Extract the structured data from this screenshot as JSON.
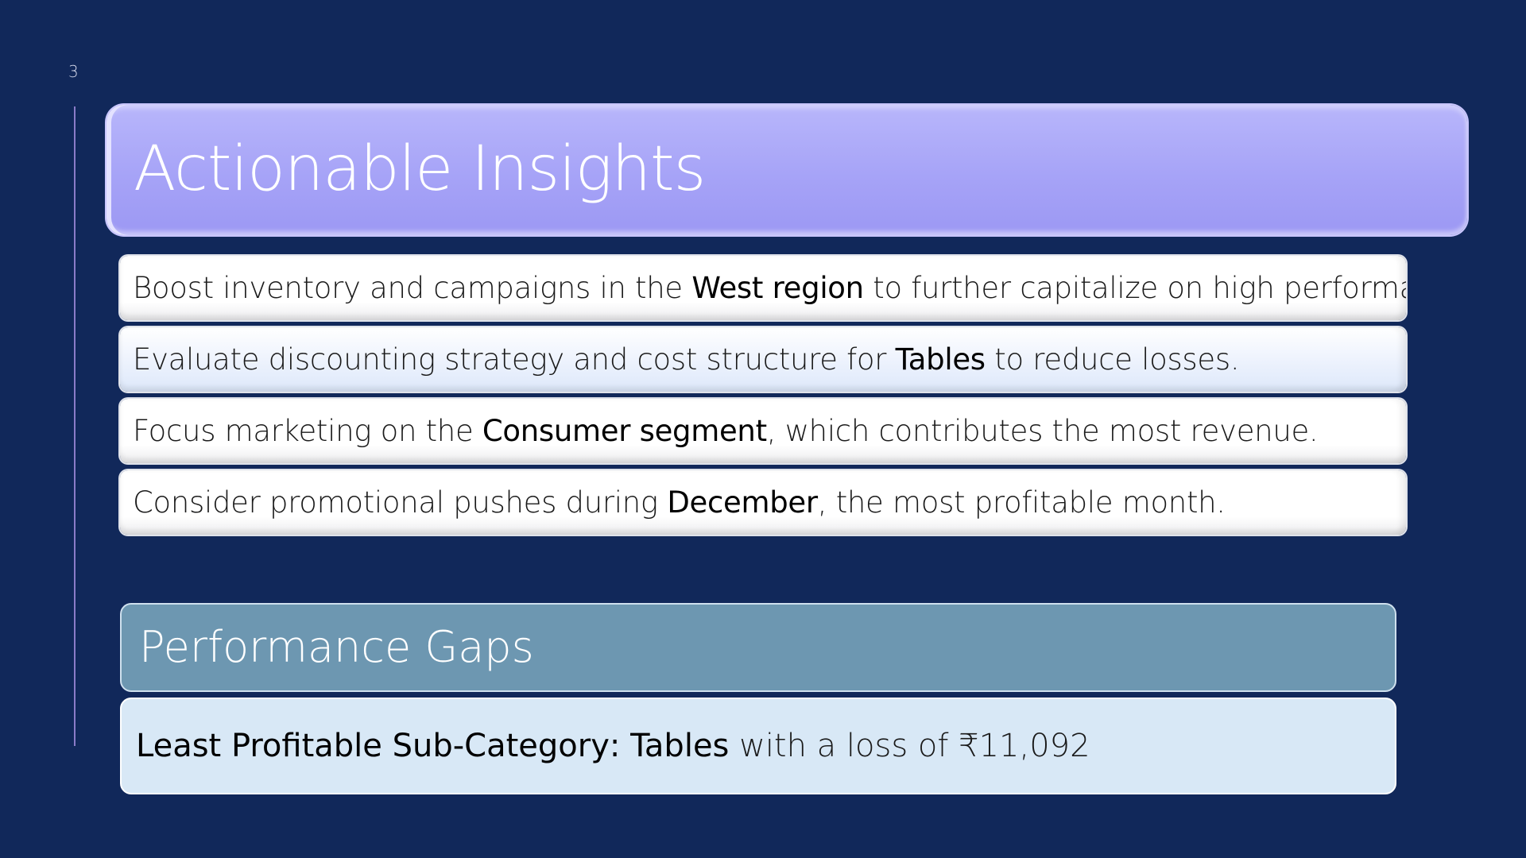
{
  "slide": {
    "number": "3"
  },
  "title": "Actionable Insights",
  "insights": [
    {
      "before": "Boost inventory and campaigns in the ",
      "highlight": "West region",
      "after": " to further capitalize on high performance."
    },
    {
      "before": "Evaluate discounting strategy and cost structure for ",
      "highlight": "Tables",
      "after": " to reduce losses."
    },
    {
      "before": "Focus marketing on the ",
      "highlight": "Consumer segment",
      "after": ", which contributes the most revenue."
    },
    {
      "before": "Consider promotional pushes during ",
      "highlight": "December",
      "after": ", the most profitable month."
    }
  ],
  "performance_gaps": {
    "title": "Performance Gaps",
    "label": "Least Profitable Sub-Category",
    "separator": ": ",
    "highlight": "Tables",
    "detail": " with a loss of ₹11,092"
  },
  "colors": {
    "background": "#11285a",
    "title_banner": "#a6a3f7",
    "gaps_header": "#6d97b1",
    "gaps_body": "#d8e8f6"
  }
}
